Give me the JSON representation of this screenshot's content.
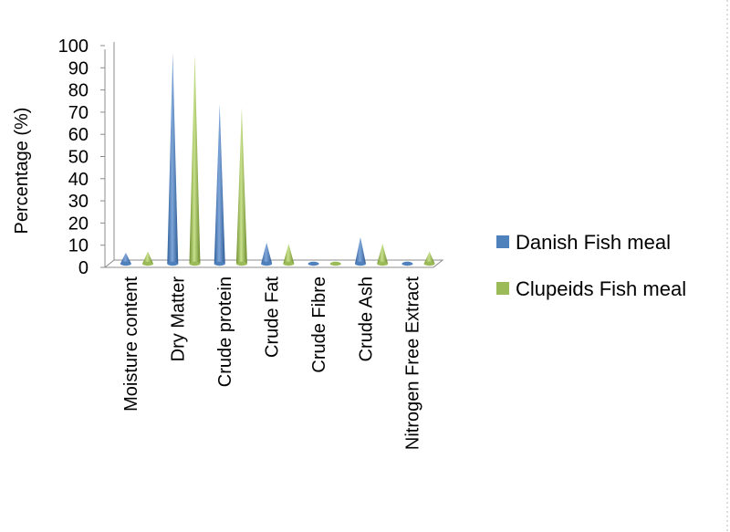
{
  "chart_data": {
    "type": "bar",
    "style": "3d-cone",
    "ylabel": "Percentage (%)",
    "xlabel": "",
    "ylim": [
      0,
      100
    ],
    "yticks": [
      "0",
      "10",
      "20",
      "30",
      "40",
      "50",
      "60",
      "70",
      "80",
      "90",
      "100"
    ],
    "categories": [
      "Moisture content",
      "Dry Matter",
      "Crude protein",
      "Crude Fat",
      "Crude Fibre",
      "Crude Ash",
      "Nitrogen Free Extract"
    ],
    "series": [
      {
        "name": "Danish Fish meal",
        "color": "#4f81bd",
        "values": [
          5,
          95,
          72,
          9.5,
          0.8,
          12,
          1
        ]
      },
      {
        "name": "Clupeids Fish meal",
        "color": "#9bbb59",
        "values": [
          5.5,
          94.5,
          70.5,
          9,
          0.7,
          9,
          5.5
        ]
      }
    ],
    "legend_position": "right",
    "grid": false
  }
}
